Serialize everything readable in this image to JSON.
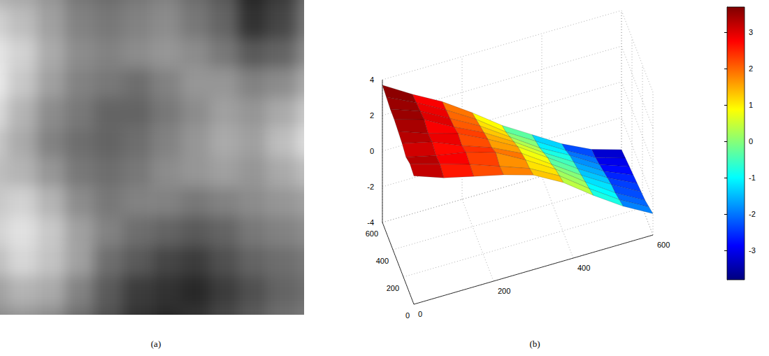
{
  "chart_data": [
    {
      "type": "heatmap",
      "title": "(a)",
      "tick_labels": false,
      "cell_range": [
        0,
        255
      ],
      "cells": [
        [
          180,
          170,
          150,
          120,
          110,
          120,
          130,
          110,
          90,
          40,
          60,
          110
        ],
        [
          210,
          190,
          160,
          130,
          120,
          130,
          140,
          120,
          100,
          50,
          70,
          120
        ],
        [
          230,
          210,
          170,
          140,
          130,
          140,
          150,
          140,
          120,
          90,
          100,
          140
        ],
        [
          235,
          200,
          160,
          130,
          120,
          110,
          130,
          150,
          150,
          130,
          140,
          170
        ],
        [
          220,
          180,
          140,
          120,
          100,
          100,
          120,
          140,
          160,
          150,
          170,
          200
        ],
        [
          200,
          170,
          130,
          110,
          100,
          110,
          130,
          150,
          170,
          160,
          190,
          220
        ],
        [
          190,
          180,
          150,
          120,
          110,
          120,
          140,
          150,
          160,
          150,
          170,
          190
        ],
        [
          200,
          210,
          180,
          140,
          120,
          130,
          130,
          120,
          130,
          140,
          150,
          160
        ],
        [
          210,
          225,
          200,
          160,
          130,
          110,
          100,
          90,
          100,
          120,
          130,
          140
        ],
        [
          190,
          215,
          195,
          160,
          110,
          90,
          70,
          60,
          80,
          100,
          110,
          120
        ],
        [
          160,
          180,
          170,
          130,
          90,
          60,
          50,
          40,
          60,
          80,
          100,
          110
        ],
        [
          140,
          150,
          140,
          110,
          80,
          50,
          40,
          50,
          70,
          90,
          110,
          120
        ]
      ]
    },
    {
      "type": "surface",
      "title": "(b)",
      "grid": true,
      "x": [
        0,
        75,
        150,
        225,
        300,
        375,
        450,
        525,
        600
      ],
      "y": [
        0,
        75,
        150,
        225,
        300,
        375,
        450,
        525,
        600
      ],
      "z": [
        [
          3.2,
          2.6,
          2.2,
          1.8,
          1.3,
          0.4,
          -0.8,
          -1.9,
          -2.8
        ],
        [
          3.3,
          2.8,
          2.3,
          1.7,
          1.1,
          0.2,
          -1.0,
          -2.1,
          -3.0
        ],
        [
          3.1,
          2.7,
          2.4,
          1.9,
          1.0,
          0.0,
          -1.2,
          -2.3,
          -3.2
        ],
        [
          3.3,
          2.9,
          2.2,
          1.6,
          0.8,
          -0.3,
          -1.4,
          -2.4,
          -3.3
        ],
        [
          3.4,
          2.8,
          2.3,
          1.5,
          0.6,
          -0.5,
          -1.6,
          -2.6,
          -3.4
        ],
        [
          3.5,
          3.0,
          2.1,
          1.3,
          0.3,
          -0.8,
          -1.8,
          -2.8,
          -3.5
        ],
        [
          3.5,
          2.9,
          2.0,
          1.1,
          0.0,
          -1.1,
          -2.0,
          -3.0,
          -3.6
        ],
        [
          3.6,
          2.8,
          1.9,
          0.9,
          -0.3,
          -1.3,
          -2.3,
          -3.2,
          -3.7
        ],
        [
          3.7,
          2.7,
          1.8,
          0.7,
          -0.5,
          -1.5,
          -2.5,
          -3.3,
          -3.8
        ]
      ],
      "xlim": [
        0,
        600
      ],
      "xticks": [
        0,
        200,
        400,
        600
      ],
      "ylim": [
        0,
        600
      ],
      "yticks": [
        0,
        200,
        400,
        600
      ],
      "zlim": [
        -4,
        4
      ],
      "zticks": [
        -4,
        -2,
        0,
        2,
        4
      ],
      "colorbar": {
        "lim": [
          -3.8,
          3.7
        ],
        "ticks": [
          -3,
          -2,
          -1,
          0,
          1,
          2,
          3
        ]
      }
    }
  ]
}
